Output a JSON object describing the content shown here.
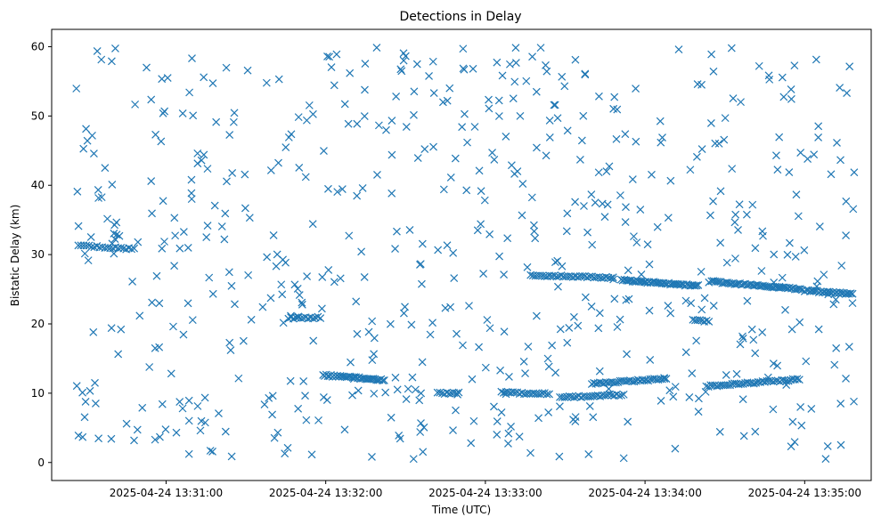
{
  "chart_data": {
    "type": "scatter",
    "title": "Detections in Delay",
    "xlabel": "Time (UTC)",
    "ylabel": "Bistatic Delay (km)",
    "x_type": "time",
    "xlim": [
      "2025-04-24 13:30:17",
      "2025-04-24 13:35:25"
    ],
    "ylim": [
      -2.6,
      62.5
    ],
    "x_ticks": [
      "2025-04-24 13:31:00",
      "2025-04-24 13:32:00",
      "2025-04-24 13:33:00",
      "2025-04-24 13:34:00",
      "2025-04-24 13:35:00"
    ],
    "y_ticks": [
      0,
      10,
      20,
      30,
      40,
      50,
      60
    ],
    "grid": false,
    "marker": "x",
    "color": "#1f77b4",
    "series": [
      {
        "comment": "Detections: tracks (dense linear segments) plus randomly scattered clutter points",
        "tracks": [
          {
            "t_start": "2025-04-24 13:30:27",
            "t_end": "2025-04-24 13:30:48",
            "y_start": 31.3,
            "y_end": 30.8,
            "n": 22
          },
          {
            "t_start": "2025-04-24 13:31:46",
            "t_end": "2025-04-24 13:31:58",
            "y_start": 20.8,
            "y_end": 20.9,
            "n": 14
          },
          {
            "t_start": "2025-04-24 13:31:59",
            "t_end": "2025-04-24 13:32:22",
            "y_start": 12.6,
            "y_end": 11.9,
            "n": 40
          },
          {
            "t_start": "2025-04-24 13:32:42",
            "t_end": "2025-04-24 13:32:50",
            "y_start": 10.0,
            "y_end": 10.0,
            "n": 10
          },
          {
            "t_start": "2025-04-24 13:33:06",
            "t_end": "2025-04-24 13:33:24",
            "y_start": 10.1,
            "y_end": 9.9,
            "n": 22
          },
          {
            "t_start": "2025-04-24 13:33:17",
            "t_end": "2025-04-24 13:33:48",
            "y_start": 27.0,
            "y_end": 26.7,
            "n": 36
          },
          {
            "t_start": "2025-04-24 13:33:28",
            "t_end": "2025-04-24 13:33:52",
            "y_start": 9.4,
            "y_end": 9.8,
            "n": 28
          },
          {
            "t_start": "2025-04-24 13:33:40",
            "t_end": "2025-04-24 13:34:08",
            "y_start": 11.4,
            "y_end": 12.1,
            "n": 38
          },
          {
            "t_start": "2025-04-24 13:33:51",
            "t_end": "2025-04-24 13:34:20",
            "y_start": 26.3,
            "y_end": 25.5,
            "n": 48
          },
          {
            "t_start": "2025-04-24 13:34:18",
            "t_end": "2025-04-24 13:34:24",
            "y_start": 20.5,
            "y_end": 20.4,
            "n": 8
          },
          {
            "t_start": "2025-04-24 13:34:23",
            "t_end": "2025-04-24 13:34:58",
            "y_start": 11.0,
            "y_end": 12.0,
            "n": 44
          },
          {
            "t_start": "2025-04-24 13:34:25",
            "t_end": "2025-04-24 13:34:59",
            "y_start": 26.1,
            "y_end": 25.0,
            "n": 52
          },
          {
            "t_start": "2025-04-24 13:35:00",
            "t_end": "2025-04-24 13:35:18",
            "y_start": 24.8,
            "y_end": 24.3,
            "n": 28
          }
        ],
        "clutter": {
          "count": 620,
          "t_start": "2025-04-24 13:30:25",
          "t_end": "2025-04-24 13:35:19",
          "y_min": 0.5,
          "y_max": 60.0
        }
      }
    ]
  }
}
